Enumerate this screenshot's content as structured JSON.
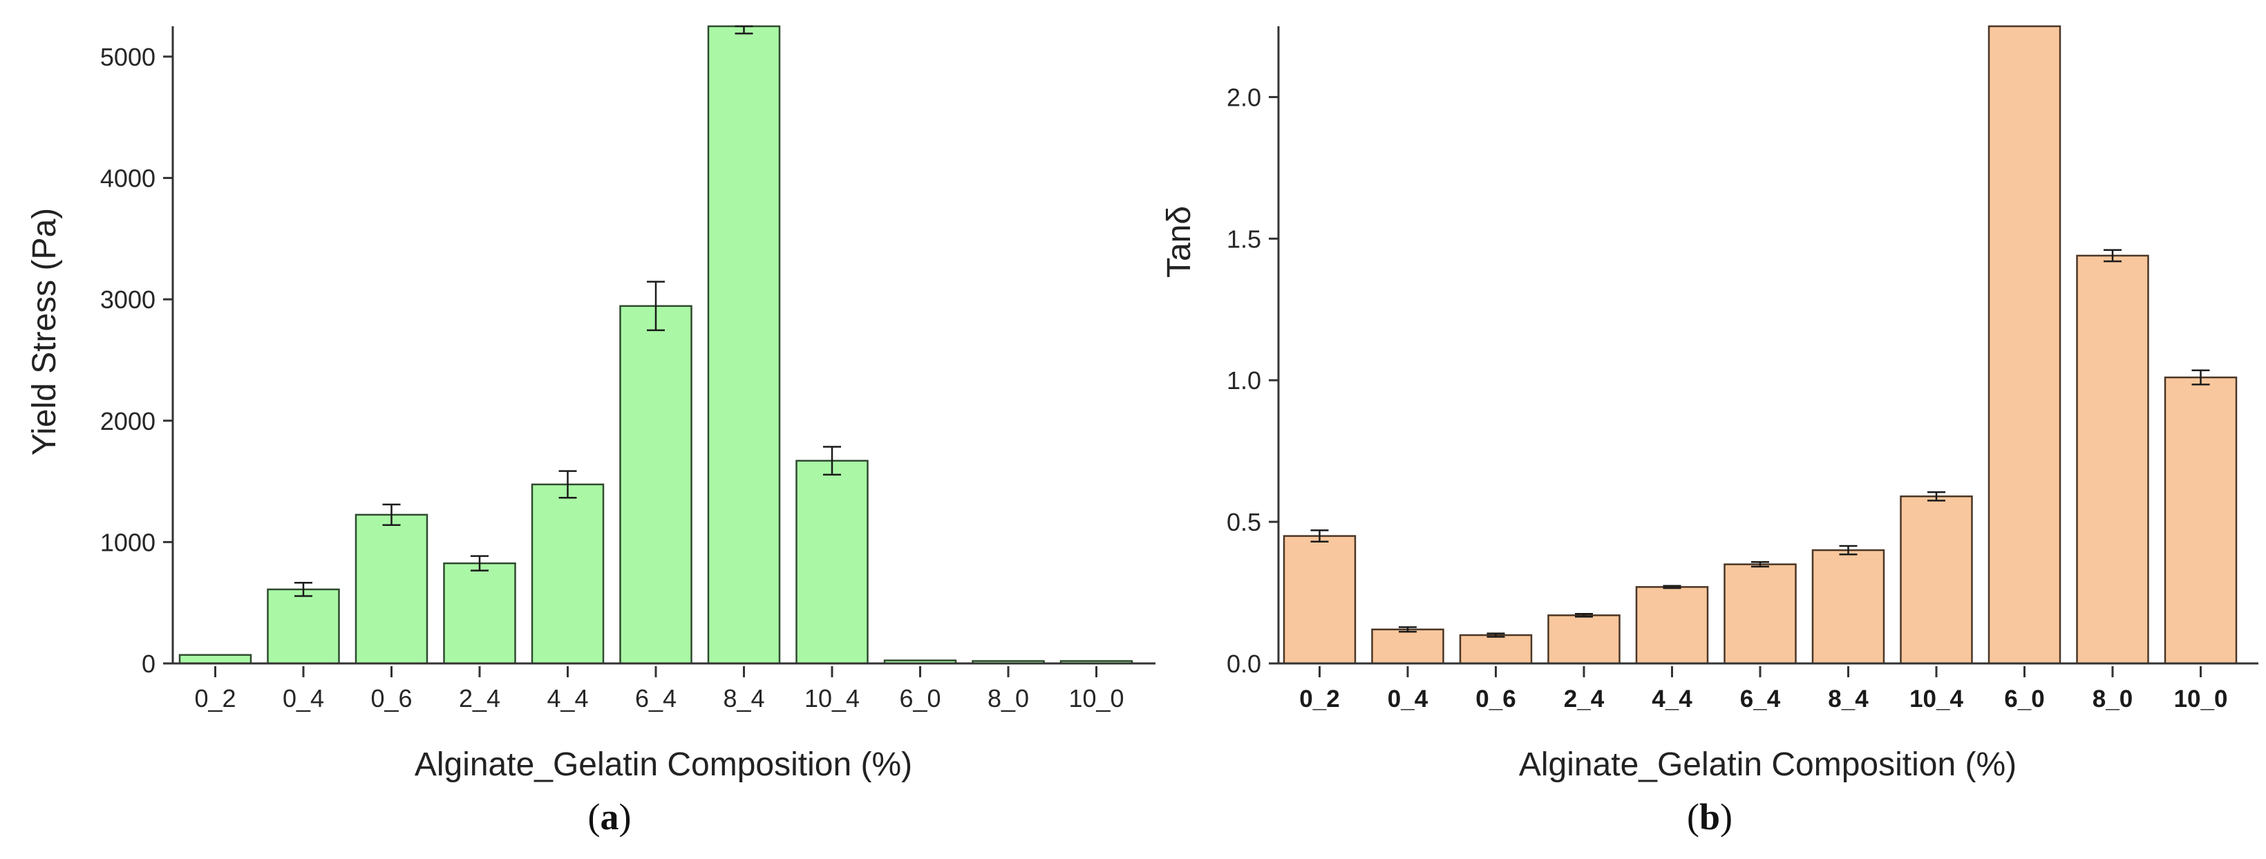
{
  "chart_data": [
    {
      "type": "bar",
      "panel": "a",
      "panel_label_open": "(",
      "panel_label_letter": "a",
      "panel_label_close": ")",
      "xlabel": "Alginate_Gelatin Composition (%)",
      "ylabel": "Yield Stress (Pa)",
      "categories": [
        "0_2",
        "0_4",
        "0_6",
        "2_4",
        "4_4",
        "6_4",
        "8_4",
        "10_4",
        "6_0",
        "8_0",
        "10_0"
      ],
      "values": [
        70,
        610,
        1225,
        825,
        1475,
        2945,
        5300,
        1670,
        25,
        20,
        20
      ],
      "errors": [
        0,
        55,
        85,
        60,
        110,
        200,
        110,
        115,
        0,
        0,
        0
      ],
      "ylim": [
        0,
        5250
      ],
      "yticks": [
        0,
        1000,
        2000,
        3000,
        4000,
        5000
      ],
      "ytick_labels": [
        "0",
        "1000",
        "2000",
        "3000",
        "4000",
        "5000"
      ],
      "bar_color": "#aaf8a6",
      "edge_color": "#2f4a2f",
      "grid": false,
      "legend": "none"
    },
    {
      "type": "bar",
      "panel": "b",
      "panel_label_open": "(",
      "panel_label_letter": "b",
      "panel_label_close": ")",
      "xlabel": "Alginate_Gelatin Composition (%)",
      "ylabel": "Tanδ",
      "categories": [
        "0_2",
        "0_4",
        "0_6",
        "2_4",
        "4_4",
        "6_4",
        "8_4",
        "10_4",
        "6_0",
        "8_0",
        "10_0"
      ],
      "values": [
        0.45,
        0.12,
        0.1,
        0.17,
        0.27,
        0.35,
        0.4,
        0.59,
        2.3,
        1.44,
        1.01
      ],
      "errors": [
        0.02,
        0.008,
        0.006,
        0.005,
        0.004,
        0.008,
        0.015,
        0.015,
        0,
        0.02,
        0.025
      ],
      "ylim": [
        0,
        2.25
      ],
      "yticks": [
        0,
        0.5,
        1.0,
        1.5,
        2.0
      ],
      "ytick_labels": [
        "0.0",
        "0.5",
        "1.0",
        "1.5",
        "2.0"
      ],
      "bar_color": "#f9c79d",
      "edge_color": "#4a3626",
      "grid": false,
      "legend": "none"
    }
  ]
}
